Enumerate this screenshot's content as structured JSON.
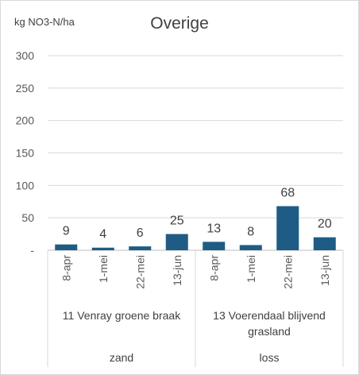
{
  "chart_data": {
    "type": "bar",
    "title": "Overige",
    "ylabel": "kg NO3-N/ha",
    "ylim": [
      0,
      300
    ],
    "yticks": [
      "300",
      "250",
      "200",
      "150",
      "100",
      "50",
      "-"
    ],
    "categories": [
      "8-apr",
      "1-mei",
      "22-mei",
      "13-jun",
      "8-apr",
      "1-mei",
      "22-mei",
      "13-jun"
    ],
    "values": [
      9,
      4,
      6,
      25,
      13,
      8,
      68,
      20
    ],
    "groups": [
      {
        "label": "11 Venray groene braak",
        "soil": "zand"
      },
      {
        "label": "13 Voerendaal blijvend grasland",
        "soil": "loss"
      }
    ],
    "bar_color": "#1F5C85",
    "grid": true
  }
}
